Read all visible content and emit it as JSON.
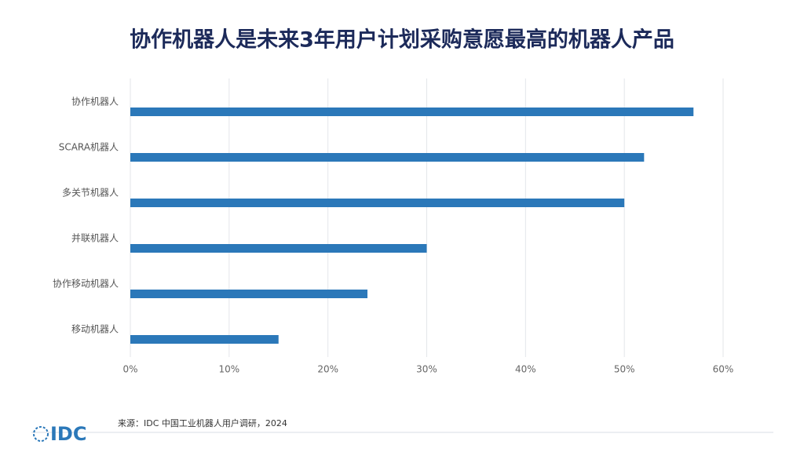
{
  "chart_data": {
    "type": "barh",
    "title": "协作机器人是未来3年用户计划采购意愿最高的机器人产品",
    "categories": [
      "协作机器人",
      "SCARA机器人",
      "多关节机器人",
      "并联机器人",
      "协作移动机器人",
      "移动机器人"
    ],
    "values": [
      57,
      52,
      50,
      30,
      24,
      15
    ],
    "color": "#2b78b9",
    "xlim": [
      0,
      60
    ],
    "xticks": [
      {
        "value": 0,
        "label": "0%"
      },
      {
        "value": 10,
        "label": "10%"
      },
      {
        "value": 20,
        "label": "20%"
      },
      {
        "value": 30,
        "label": "30%"
      },
      {
        "value": 40,
        "label": "40%"
      },
      {
        "value": 50,
        "label": "50%"
      },
      {
        "value": 60,
        "label": "60%"
      }
    ],
    "grid": true,
    "source": "来源：IDC 中国工业机器人用户调研，2024"
  },
  "logo": "IDC"
}
